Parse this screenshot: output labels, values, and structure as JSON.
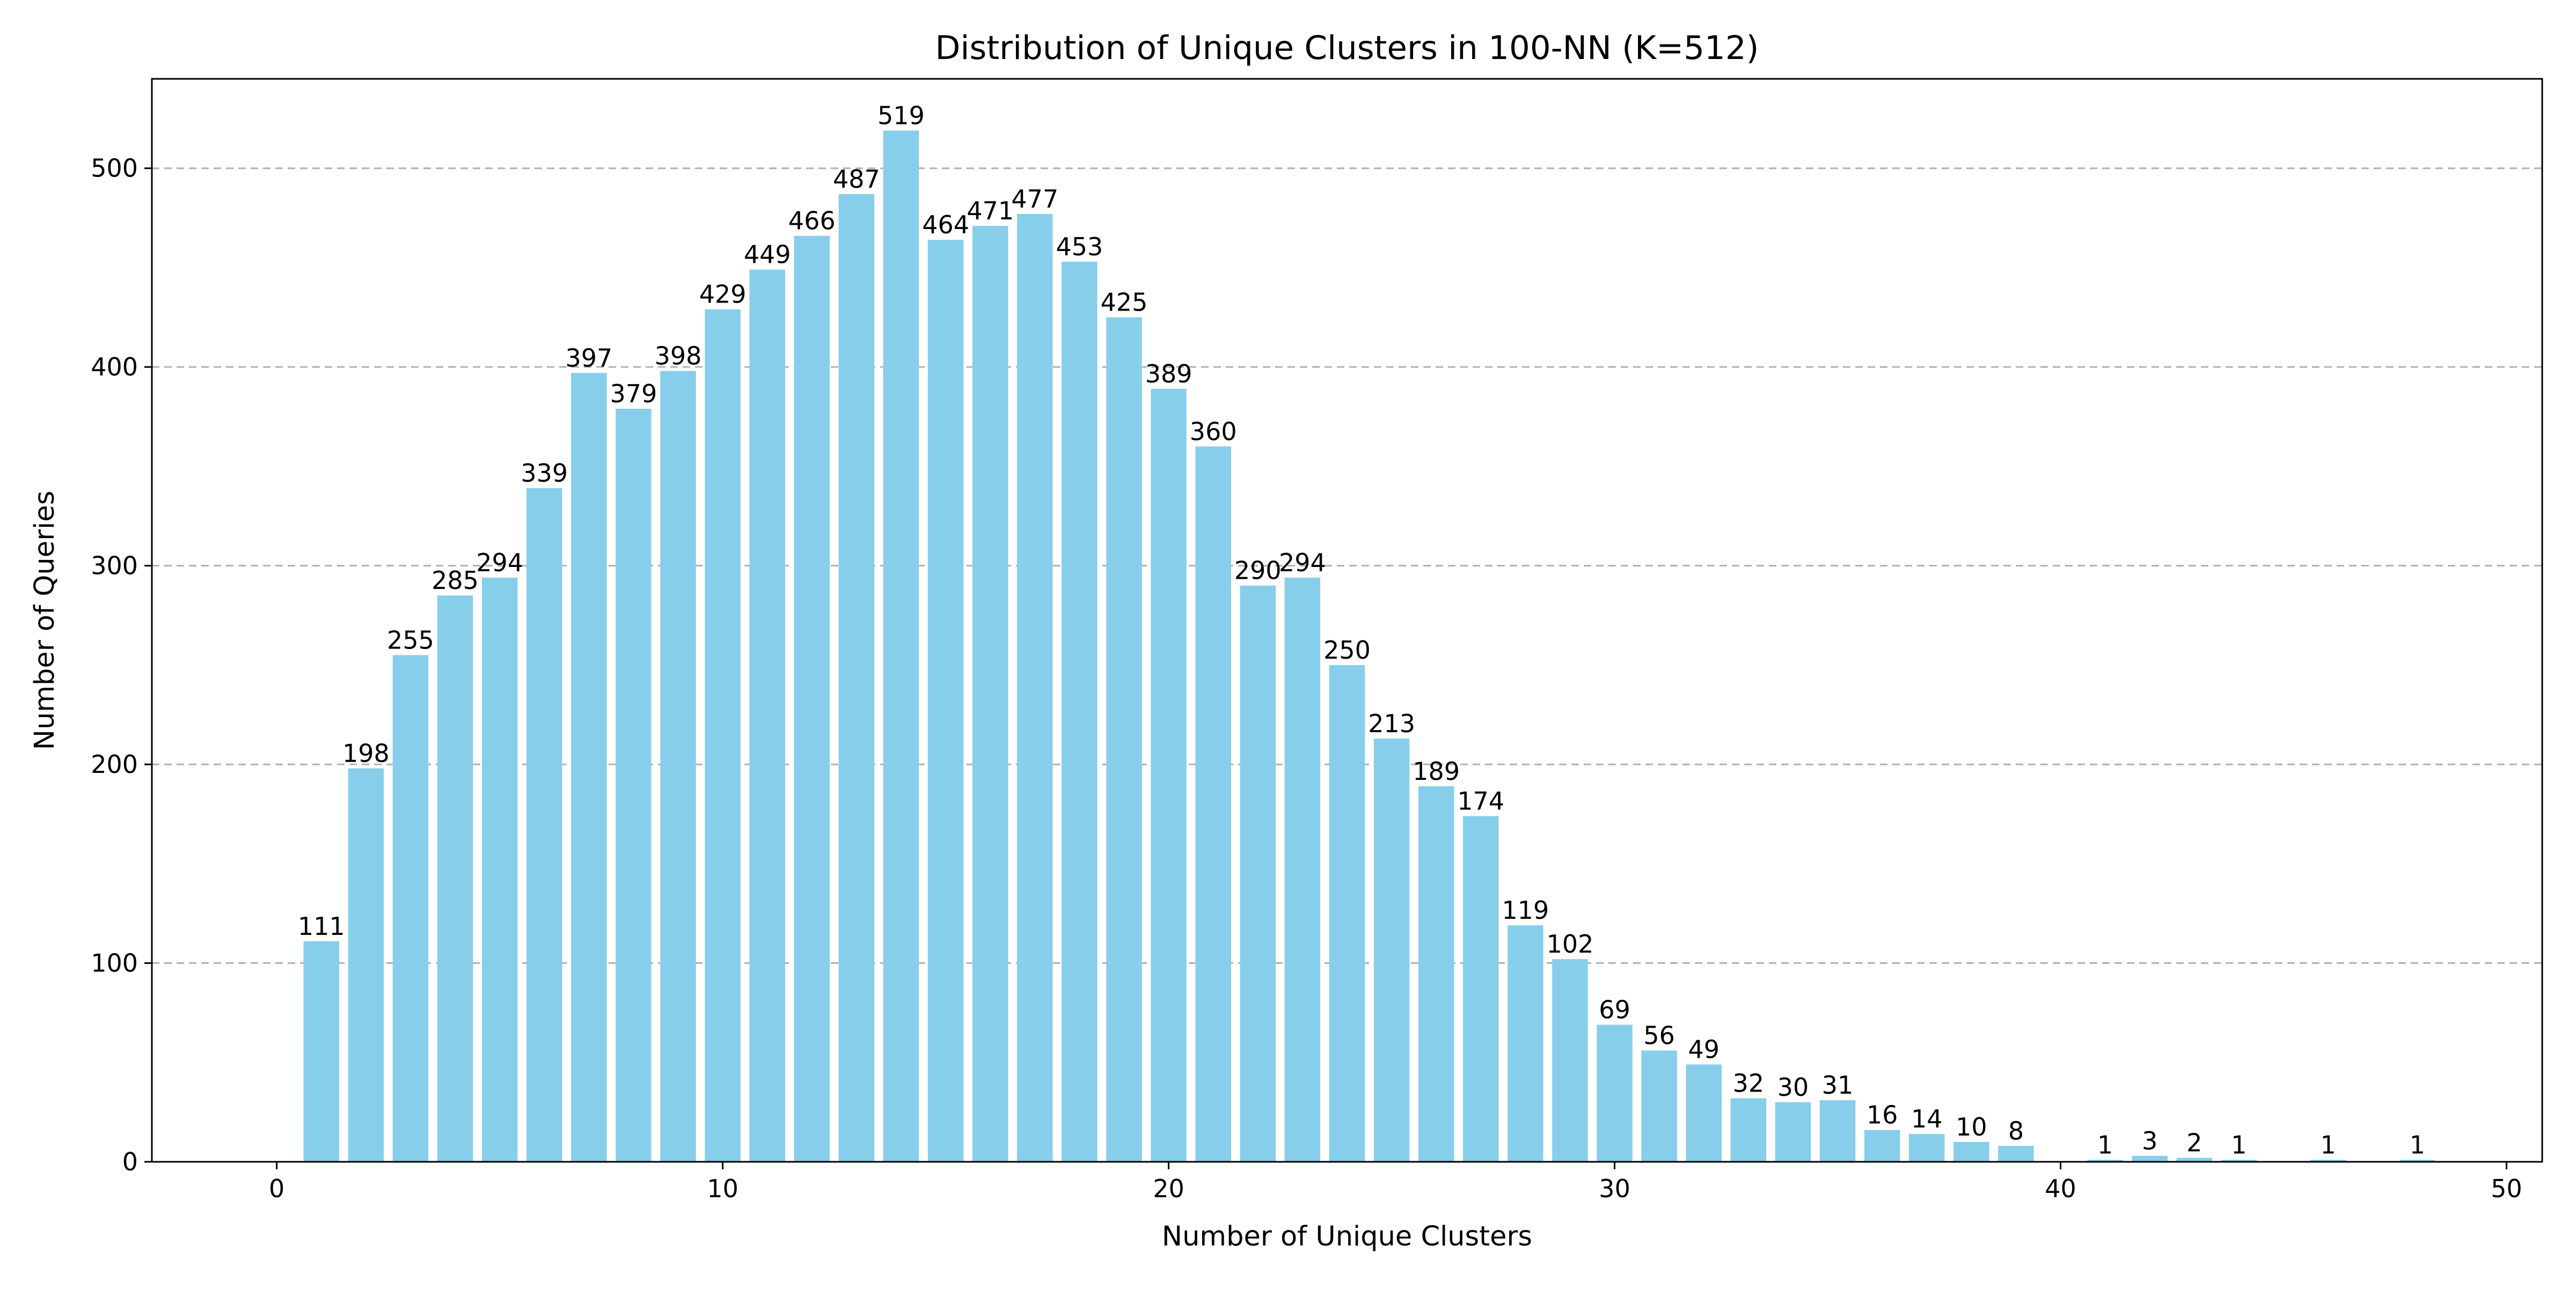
{
  "chart_data": {
    "type": "bar",
    "title": "Distribution of Unique Clusters in 100-NN (K=512)",
    "xlabel": "Number of Unique Clusters",
    "ylabel": "Number of Queries",
    "xlim": [
      -2.8,
      50.8
    ],
    "ylim": [
      0,
      545
    ],
    "xticks": [
      0,
      10,
      20,
      30,
      40,
      50
    ],
    "yticks": [
      0,
      100,
      200,
      300,
      400,
      500
    ],
    "grid": "y-dashed",
    "bar_color": "#87ceeb",
    "x": [
      1,
      2,
      3,
      4,
      5,
      6,
      7,
      8,
      9,
      10,
      11,
      12,
      13,
      14,
      15,
      16,
      17,
      18,
      19,
      20,
      21,
      22,
      23,
      24,
      25,
      26,
      27,
      28,
      29,
      30,
      31,
      32,
      33,
      34,
      35,
      36,
      37,
      38,
      39,
      41,
      42,
      43,
      44,
      46,
      48
    ],
    "values": [
      111,
      198,
      255,
      285,
      294,
      339,
      397,
      379,
      398,
      429,
      449,
      466,
      487,
      519,
      464,
      471,
      477,
      453,
      425,
      389,
      360,
      290,
      294,
      250,
      213,
      189,
      174,
      119,
      102,
      69,
      56,
      49,
      32,
      30,
      31,
      16,
      14,
      10,
      8,
      1,
      3,
      2,
      1,
      1,
      1
    ]
  }
}
